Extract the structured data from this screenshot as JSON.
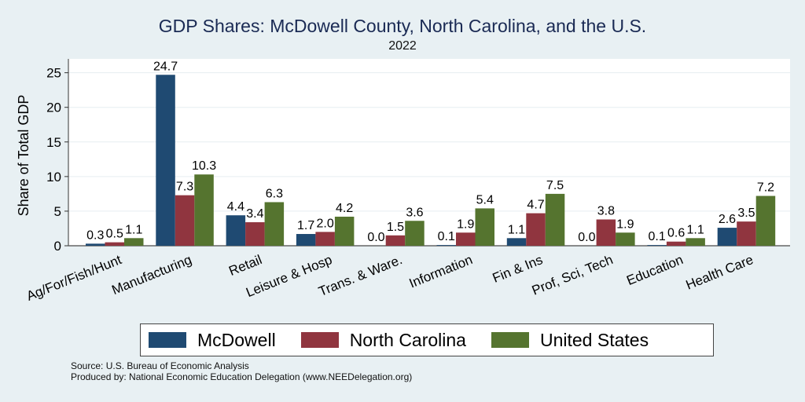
{
  "chart_data": {
    "type": "bar",
    "title": "GDP Shares: McDowell County, North Carolina, and the U.S.",
    "subtitle": "2022",
    "xlabel": "",
    "ylabel": "Share of Total GDP",
    "ylim": [
      0,
      27
    ],
    "yticks": [
      0,
      5,
      10,
      15,
      20,
      25
    ],
    "grid": true,
    "legend_position": "bottom",
    "categories": [
      "Ag/For/Fish/Hunt",
      "Manufacturing",
      "Retail",
      "Leisure & Hosp",
      "Trans. & Ware.",
      "Information",
      "Fin & Ins",
      "Prof, Sci, Tech",
      "Education",
      "Health Care"
    ],
    "series": [
      {
        "name": "McDowell",
        "color": "#1f4a72",
        "values": [
          0.3,
          24.7,
          4.4,
          1.7,
          0.0,
          0.1,
          1.1,
          0.0,
          0.1,
          2.6
        ]
      },
      {
        "name": "North Carolina",
        "color": "#90353f",
        "values": [
          0.5,
          7.3,
          3.4,
          2.0,
          1.5,
          1.9,
          4.7,
          3.8,
          0.6,
          3.5
        ]
      },
      {
        "name": "United States",
        "color": "#55742f",
        "values": [
          1.1,
          10.3,
          6.3,
          4.2,
          3.6,
          5.4,
          7.5,
          1.9,
          1.1,
          7.2
        ]
      }
    ]
  },
  "footer": {
    "source": "Source: U.S. Bureau of Economic Analysis",
    "produced_by": "Produced by: National Economic Education Delegation (www.NEEDelegation.org)"
  }
}
